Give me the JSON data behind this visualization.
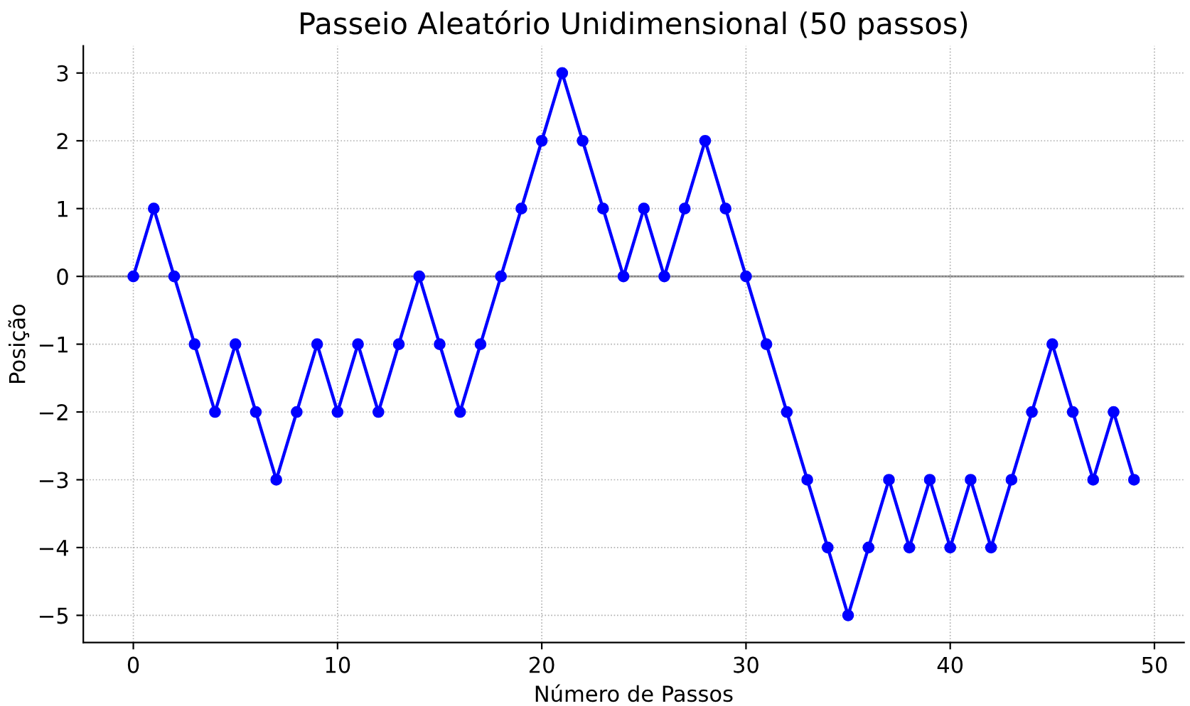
{
  "chart_data": {
    "type": "line",
    "title": "Passeio Aleatório Unidimensional (50 passos)",
    "xlabel": "Número de Passos",
    "ylabel": "Posição",
    "x": [
      0,
      1,
      2,
      3,
      4,
      5,
      6,
      7,
      8,
      9,
      10,
      11,
      12,
      13,
      14,
      15,
      16,
      17,
      18,
      19,
      20,
      21,
      22,
      23,
      24,
      25,
      26,
      27,
      28,
      29,
      30,
      31,
      32,
      33,
      34,
      35,
      36,
      37,
      38,
      39,
      40,
      41,
      42,
      43,
      44,
      45,
      46,
      47,
      48,
      49
    ],
    "series": [
      {
        "color": "#0000ff",
        "values": [
          0,
          1,
          0,
          -1,
          -2,
          -1,
          -2,
          -3,
          -2,
          -1,
          -2,
          -1,
          -2,
          -1,
          0,
          -1,
          -2,
          -1,
          0,
          1,
          2,
          3,
          2,
          1,
          0,
          1,
          0,
          1,
          2,
          1,
          0,
          -1,
          -2,
          -3,
          -4,
          -5,
          -4,
          -3,
          -4,
          -3,
          -4,
          -3,
          -4,
          -3,
          -2,
          -1,
          -2,
          -3,
          -2,
          -3
        ]
      }
    ],
    "xlim": [
      -2.45,
      51.45
    ],
    "ylim": [
      -5.4,
      3.4
    ],
    "xticks": [
      0,
      10,
      20,
      30,
      40,
      50
    ],
    "yticks": [
      {
        "value": -5,
        "label": "−5"
      },
      {
        "value": -4,
        "label": "−4"
      },
      {
        "value": -3,
        "label": "−3"
      },
      {
        "value": -2,
        "label": "−2"
      },
      {
        "value": -1,
        "label": "−1"
      },
      0,
      1,
      2,
      3
    ],
    "ref_lines": [
      {
        "axis": "y",
        "value": 0,
        "color": "#808080",
        "line_style": "solid"
      }
    ],
    "grid": true,
    "marker": "circle",
    "line_style": "solid"
  }
}
